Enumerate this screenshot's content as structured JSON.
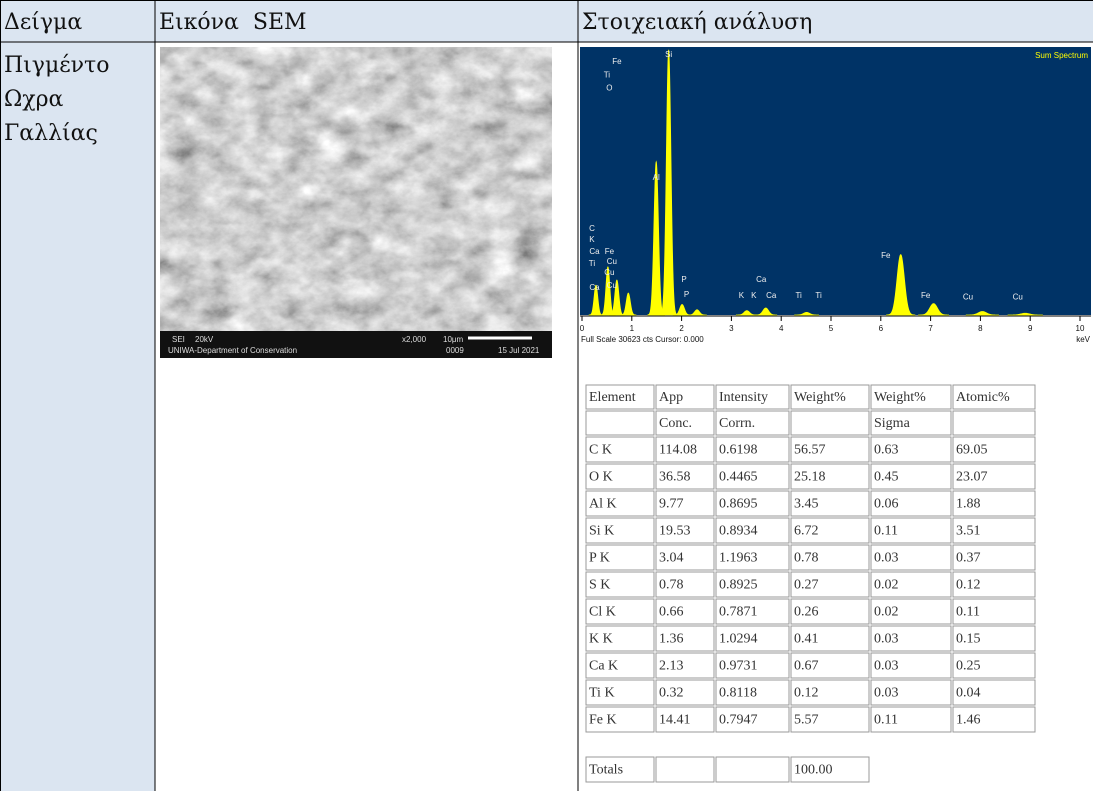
{
  "header": {
    "cells": [
      "Δείγμα",
      "Εικόνα  SEM",
      "Στοιχειακή ανάλυση"
    ]
  },
  "sample": {
    "lines": [
      "Πιγμέντο",
      "Ωχρα",
      "Γαλλίας"
    ]
  },
  "sem_image": {
    "labels": [
      "SEI",
      "20kV",
      "x2,000",
      "10μm",
      "0009",
      "15 Jul 2021",
      "UNIWA-Department of Conservation"
    ]
  },
  "spectrum": {
    "type": "spectrum",
    "title": "Sum Spectrum",
    "footer": "Full Scale 30623 cts Cursor: 0.000",
    "x_unit": "keV",
    "xlim": [
      0,
      10.2
    ],
    "ylim": [
      0,
      30623
    ],
    "xticks": [
      0,
      1,
      2,
      3,
      4,
      5,
      6,
      7,
      8,
      9,
      10
    ],
    "color": "#ffff00",
    "background": "#003366",
    "peaks": {
      "x": [
        0.28,
        0.52,
        0.7,
        0.93,
        1.49,
        1.74,
        2.01,
        2.31,
        3.31,
        3.69,
        4.51,
        6.4,
        7.06,
        8.04,
        8.9
      ],
      "y": [
        3400,
        5500,
        4000,
        2500,
        17500,
        30300,
        1200,
        600,
        500,
        800,
        300,
        6900,
        1300,
        400,
        200
      ]
    },
    "labels": [
      {
        "text": "Fe",
        "x": 0.7,
        "y": 28900
      },
      {
        "text": "Ti",
        "x": 0.5,
        "y": 27400
      },
      {
        "text": "O",
        "x": 0.55,
        "y": 25900
      },
      {
        "text": "Si",
        "x": 1.74,
        "y": 29700
      },
      {
        "text": "Al",
        "x": 1.49,
        "y": 15650
      },
      {
        "text": "C",
        "x": 0.2,
        "y": 9830
      },
      {
        "text": "K",
        "x": 0.2,
        "y": 8570
      },
      {
        "text": "Ca",
        "x": 0.25,
        "y": 7200
      },
      {
        "text": "Fe",
        "x": 0.55,
        "y": 7200
      },
      {
        "text": "Cu",
        "x": 0.6,
        "y": 6060
      },
      {
        "text": "Ti",
        "x": 0.2,
        "y": 5830
      },
      {
        "text": "Cu",
        "x": 0.55,
        "y": 4800
      },
      {
        "text": "Ca",
        "x": 0.25,
        "y": 3090
      },
      {
        "text": "Cu",
        "x": 0.6,
        "y": 3320
      },
      {
        "text": "P",
        "x": 2.05,
        "y": 4000
      },
      {
        "text": "P",
        "x": 2.1,
        "y": 2290
      },
      {
        "text": "Ca",
        "x": 3.6,
        "y": 4000
      },
      {
        "text": "K",
        "x": 3.2,
        "y": 2170
      },
      {
        "text": "K",
        "x": 3.45,
        "y": 2170
      },
      {
        "text": "Ca",
        "x": 3.8,
        "y": 2170
      },
      {
        "text": "Ti",
        "x": 4.35,
        "y": 2170
      },
      {
        "text": "Ti",
        "x": 4.75,
        "y": 2170
      },
      {
        "text": "Fe",
        "x": 6.1,
        "y": 6740
      },
      {
        "text": "Fe",
        "x": 6.9,
        "y": 2170
      },
      {
        "text": "Cu",
        "x": 7.75,
        "y": 2000
      },
      {
        "text": "Cu",
        "x": 8.75,
        "y": 2000
      }
    ]
  },
  "table": {
    "rows": [
      [
        "Element",
        "App",
        "Intensity",
        "Weight%",
        "Weight%",
        "Atomic%"
      ],
      [
        null,
        "Conc.",
        "Corrn.",
        null,
        "Sigma",
        null
      ],
      [
        "C K",
        "114.08",
        "0.6198",
        "56.57",
        "0.63",
        "69.05"
      ],
      [
        "O K",
        "36.58",
        "0.4465",
        "25.18",
        "0.45",
        "23.07"
      ],
      [
        "Al K",
        "9.77",
        "0.8695",
        "3.45",
        "0.06",
        "1.88"
      ],
      [
        "Si K",
        "19.53",
        "0.8934",
        "6.72",
        "0.11",
        "3.51"
      ],
      [
        "P K",
        "3.04",
        "1.1963",
        "0.78",
        "0.03",
        "0.37"
      ],
      [
        "S K",
        "0.78",
        "0.8925",
        "0.27",
        "0.02",
        "0.12"
      ],
      [
        "Cl K",
        "0.66",
        "0.7871",
        "0.26",
        "0.02",
        "0.11"
      ],
      [
        "K K",
        "1.36",
        "1.0294",
        "0.41",
        "0.03",
        "0.15"
      ],
      [
        "Ca K",
        "2.13",
        "0.9731",
        "0.67",
        "0.03",
        "0.25"
      ],
      [
        "Ti K",
        "0.32",
        "0.8118",
        "0.12",
        "0.03",
        "0.04"
      ],
      [
        "Fe K",
        "14.41",
        "0.7947",
        "5.57",
        "0.11",
        "1.46"
      ],
      [
        "Totals",
        null,
        null,
        "100.00"
      ]
    ]
  }
}
